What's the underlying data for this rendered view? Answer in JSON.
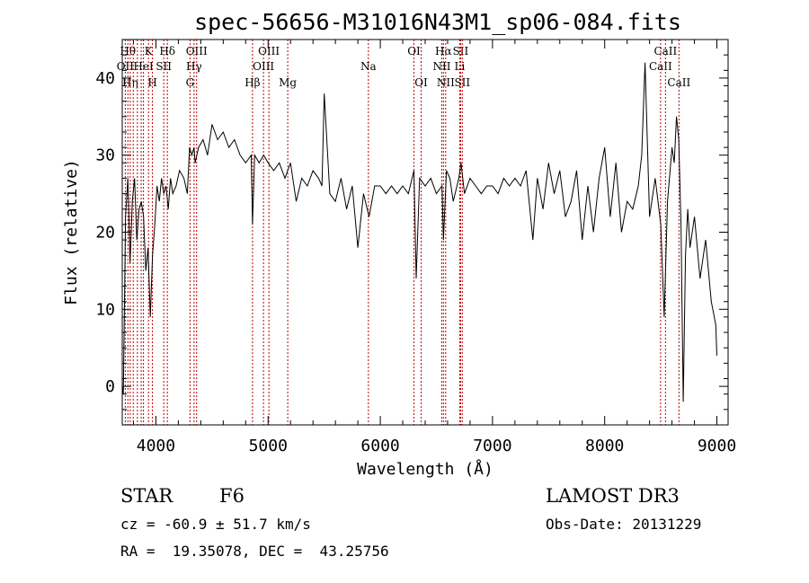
{
  "chart_data": {
    "type": "line",
    "title": "spec-56656-M31016N43M1_sp06-084.fits",
    "xlabel": "Wavelength (Å)",
    "ylabel": "Flux (relative)",
    "xlim": [
      3700,
      9100
    ],
    "ylim": [
      -5,
      45
    ],
    "xticks": [
      4000,
      5000,
      6000,
      7000,
      8000,
      9000
    ],
    "yticks": [
      0,
      10,
      20,
      30,
      40
    ],
    "grid": false,
    "series": [
      {
        "name": "flux",
        "x": [
          3700,
          3710,
          3730,
          3750,
          3770,
          3790,
          3810,
          3830,
          3850,
          3870,
          3890,
          3910,
          3930,
          3950,
          3970,
          3990,
          4010,
          4030,
          4050,
          4070,
          4090,
          4110,
          4130,
          4150,
          4180,
          4210,
          4250,
          4280,
          4300,
          4320,
          4340,
          4350,
          4380,
          4420,
          4460,
          4500,
          4550,
          4600,
          4650,
          4700,
          4750,
          4800,
          4850,
          4861,
          4880,
          4920,
          4960,
          5000,
          5050,
          5100,
          5150,
          5200,
          5250,
          5300,
          5350,
          5400,
          5450,
          5480,
          5500,
          5550,
          5600,
          5650,
          5700,
          5750,
          5800,
          5850,
          5900,
          5950,
          6000,
          6050,
          6100,
          6150,
          6200,
          6250,
          6300,
          6320,
          6350,
          6400,
          6450,
          6500,
          6550,
          6563,
          6590,
          6620,
          6650,
          6700,
          6720,
          6750,
          6800,
          6850,
          6900,
          6950,
          7000,
          7050,
          7100,
          7150,
          7200,
          7250,
          7300,
          7340,
          7360,
          7400,
          7450,
          7500,
          7550,
          7600,
          7650,
          7700,
          7750,
          7800,
          7850,
          7900,
          7950,
          8000,
          8050,
          8100,
          8150,
          8200,
          8250,
          8300,
          8330,
          8360,
          8400,
          8450,
          8500,
          8530,
          8560,
          8600,
          8620,
          8640,
          8660,
          8680,
          8700,
          8720,
          8740,
          8760,
          8800,
          8850,
          8900,
          8950,
          8990,
          9000
        ],
        "y": [
          0,
          -1,
          22,
          27,
          16,
          24,
          27,
          19,
          23,
          24,
          22,
          15,
          18,
          9,
          17,
          21,
          26,
          24,
          27,
          25,
          26,
          23,
          27,
          25,
          26,
          28,
          27,
          25,
          31,
          30,
          31,
          29,
          31,
          32,
          30,
          34,
          32,
          33,
          31,
          32,
          30,
          29,
          30,
          21,
          30,
          29,
          30,
          29,
          28,
          29,
          27,
          29,
          24,
          27,
          26,
          28,
          27,
          26,
          38,
          25,
          24,
          27,
          23,
          26,
          18,
          25,
          22,
          26,
          26,
          25,
          26,
          25,
          26,
          25,
          28,
          14,
          27,
          26,
          27,
          25,
          26,
          19,
          28,
          27,
          24,
          27,
          29,
          25,
          27,
          26,
          25,
          26,
          26,
          25,
          27,
          26,
          27,
          26,
          28,
          22,
          19,
          27,
          23,
          29,
          25,
          28,
          22,
          24,
          28,
          19,
          26,
          20,
          27,
          31,
          22,
          29,
          20,
          24,
          23,
          26,
          30,
          42,
          22,
          27,
          21,
          9,
          24,
          31,
          29,
          35,
          32,
          21,
          -2,
          17,
          23,
          18,
          22,
          14,
          19,
          11,
          8,
          4
        ]
      }
    ],
    "lines": [
      {
        "x": 3750,
        "label": "Hθ",
        "row": 0
      },
      {
        "x": 3727,
        "label": "OII",
        "row": 1
      },
      {
        "x": 3771,
        "label": "Hη",
        "row": 2
      },
      {
        "x": 3798,
        "label": "",
        "row": 2
      },
      {
        "x": 3835,
        "label": "",
        "row": 0
      },
      {
        "x": 3869,
        "label": "",
        "row": 1
      },
      {
        "x": 3889,
        "label": "HeI",
        "row": 1
      },
      {
        "x": 3934,
        "label": "K",
        "row": 0
      },
      {
        "x": 3969,
        "label": "H",
        "row": 2
      },
      {
        "x": 4070,
        "label": "SII",
        "row": 1
      },
      {
        "x": 4102,
        "label": "Hδ",
        "row": 0
      },
      {
        "x": 4304,
        "label": "G",
        "row": 2
      },
      {
        "x": 4340,
        "label": "Hγ",
        "row": 1
      },
      {
        "x": 4363,
        "label": "OIII",
        "row": 0
      },
      {
        "x": 4861,
        "label": "Hβ",
        "row": 2
      },
      {
        "x": 4959,
        "label": "OIII",
        "row": 1
      },
      {
        "x": 5007,
        "label": "OIII",
        "row": 0
      },
      {
        "x": 5175,
        "label": "Mg",
        "row": 2
      },
      {
        "x": 5894,
        "label": "Na",
        "row": 1
      },
      {
        "x": 6300,
        "label": "OI",
        "row": 0
      },
      {
        "x": 6364,
        "label": "OI",
        "row": 2
      },
      {
        "x": 6548,
        "label": "NII",
        "row": 1
      },
      {
        "x": 6563,
        "label": "Hα",
        "row": 0
      },
      {
        "x": 6583,
        "label": "NII",
        "row": 2
      },
      {
        "x": 6708,
        "label": "Li",
        "row": 1
      },
      {
        "x": 6716,
        "label": "SII",
        "row": 0
      },
      {
        "x": 6731,
        "label": "SII",
        "row": 2
      },
      {
        "x": 8498,
        "label": "CaII",
        "row": 1
      },
      {
        "x": 8542,
        "label": "CaII",
        "row": 0
      },
      {
        "x": 8662,
        "label": "CaII",
        "row": 2
      }
    ]
  },
  "info": {
    "object_class": "STAR",
    "subclass": "F6",
    "survey": "LAMOST DR3",
    "cz": "cz = -60.9 ± 51.7 km/s",
    "obs_date": "Obs-Date: 20131229",
    "coords": "RA =  19.35078, DEC =  43.25756"
  }
}
